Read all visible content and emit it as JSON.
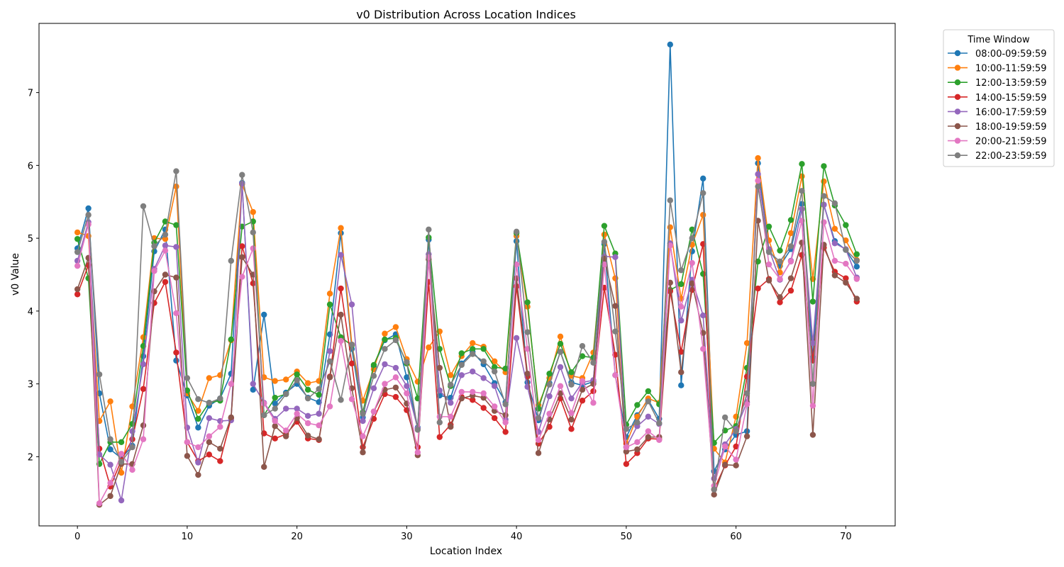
{
  "chart_data": {
    "type": "line",
    "title": "v0 Distribution Across Location Indices",
    "xlabel": "Location Index",
    "ylabel": "v0 Value",
    "xlim": [
      -3.5,
      74.5
    ],
    "ylim": [
      1.05,
      7.95
    ],
    "xticks": [
      0,
      10,
      20,
      30,
      40,
      50,
      60,
      70
    ],
    "yticks": [
      2,
      3,
      4,
      5,
      6,
      7
    ],
    "grid": false,
    "legend": {
      "title": "Time Window",
      "placement": "outside-top-right"
    },
    "x": [
      0,
      1,
      2,
      3,
      4,
      5,
      6,
      7,
      8,
      9,
      10,
      11,
      12,
      13,
      14,
      15,
      16,
      17,
      18,
      19,
      20,
      21,
      22,
      23,
      24,
      25,
      26,
      27,
      28,
      29,
      30,
      31,
      32,
      33,
      34,
      35,
      36,
      37,
      38,
      39,
      40,
      41,
      42,
      43,
      44,
      45,
      46,
      47,
      48,
      49,
      50,
      51,
      52,
      53,
      54,
      55,
      56,
      57,
      58,
      59,
      60,
      61,
      62,
      63,
      64,
      65,
      66,
      67,
      68,
      69,
      70,
      71
    ],
    "series": [
      {
        "name": "08:00-09:59:59",
        "color": "#1f77b4",
        "values": [
          4.86,
          5.41,
          2.87,
          2.1,
          1.98,
          2.15,
          3.38,
          4.82,
          5.12,
          3.32,
          2.84,
          2.4,
          2.7,
          2.8,
          3.14,
          5.76,
          2.92,
          3.95,
          2.73,
          2.88,
          3.0,
          2.81,
          2.75,
          3.68,
          5.07,
          3.48,
          2.54,
          3.24,
          3.6,
          3.68,
          3.09,
          2.4,
          4.98,
          2.84,
          2.81,
          3.28,
          3.44,
          3.27,
          3.01,
          2.75,
          4.96,
          3.02,
          2.5,
          3.01,
          3.44,
          3.02,
          2.98,
          3.03,
          4.92,
          3.12,
          2.27,
          2.57,
          2.78,
          2.52,
          7.66,
          2.98,
          4.82,
          5.82,
          1.8,
          2.1,
          2.3,
          2.35,
          6.03,
          4.84,
          4.62,
          4.85,
          5.47,
          3.36,
          5.46,
          4.96,
          4.84,
          4.61
        ]
      },
      {
        "name": "10:00-11:59:59",
        "color": "#ff7f0e",
        "values": [
          5.08,
          5.03,
          2.49,
          2.76,
          1.78,
          2.69,
          3.64,
          5.0,
          4.99,
          5.71,
          2.87,
          2.63,
          3.08,
          3.12,
          3.6,
          5.74,
          5.36,
          3.09,
          3.04,
          3.06,
          3.17,
          3.01,
          3.04,
          4.24,
          5.14,
          3.54,
          2.77,
          3.2,
          3.69,
          3.78,
          3.34,
          3.03,
          3.5,
          3.72,
          3.12,
          3.38,
          3.56,
          3.51,
          3.31,
          3.16,
          5.03,
          4.06,
          2.71,
          3.08,
          3.65,
          3.11,
          3.08,
          3.43,
          5.05,
          4.45,
          2.18,
          2.55,
          2.8,
          2.74,
          5.15,
          4.17,
          4.91,
          5.32,
          2.11,
          1.92,
          2.55,
          3.56,
          6.1,
          4.97,
          4.53,
          5.07,
          5.85,
          4.44,
          5.78,
          5.13,
          4.97,
          4.7
        ]
      },
      {
        "name": "12:00-13:59:59",
        "color": "#2ca02c",
        "values": [
          4.99,
          4.45,
          1.9,
          2.2,
          2.2,
          2.45,
          3.52,
          4.94,
          5.23,
          5.18,
          2.91,
          2.52,
          2.74,
          2.77,
          3.61,
          5.16,
          5.23,
          2.57,
          2.81,
          2.86,
          3.13,
          2.92,
          2.85,
          4.09,
          3.64,
          3.53,
          2.61,
          3.26,
          3.61,
          3.63,
          3.28,
          2.8,
          5.01,
          3.48,
          2.97,
          3.42,
          3.48,
          3.48,
          3.23,
          3.21,
          5.07,
          4.12,
          2.66,
          3.14,
          3.55,
          3.16,
          3.38,
          3.36,
          5.17,
          4.79,
          2.44,
          2.71,
          2.9,
          2.72,
          4.29,
          4.37,
          5.12,
          4.51,
          2.19,
          2.36,
          2.42,
          3.22,
          4.68,
          5.16,
          4.83,
          5.25,
          6.02,
          4.13,
          5.99,
          5.45,
          5.18,
          4.78
        ]
      },
      {
        "name": "14:00-15:59:59",
        "color": "#d62728",
        "values": [
          4.23,
          4.63,
          2.11,
          1.59,
          1.95,
          2.24,
          2.93,
          4.11,
          4.4,
          3.43,
          2.2,
          1.94,
          2.03,
          1.94,
          2.53,
          4.89,
          4.38,
          2.32,
          2.25,
          2.31,
          2.48,
          2.25,
          2.23,
          3.1,
          4.31,
          3.28,
          2.13,
          2.52,
          2.86,
          2.82,
          2.64,
          2.13,
          4.4,
          2.27,
          2.44,
          2.82,
          2.78,
          2.67,
          2.53,
          2.34,
          4.34,
          3.1,
          2.18,
          2.41,
          2.8,
          2.38,
          2.77,
          2.9,
          4.32,
          3.4,
          1.9,
          2.05,
          2.25,
          2.24,
          4.27,
          3.44,
          4.29,
          4.92,
          1.55,
          1.88,
          2.14,
          3.1,
          4.31,
          4.44,
          4.12,
          4.28,
          4.77,
          3.32,
          4.87,
          4.54,
          4.45,
          4.13
        ]
      },
      {
        "name": "16:00-17:59:59",
        "color": "#9467bd",
        "values": [
          4.69,
          5.22,
          2.03,
          1.89,
          1.4,
          2.35,
          3.27,
          4.58,
          4.9,
          4.88,
          2.4,
          1.92,
          2.53,
          2.49,
          2.5,
          5.75,
          3.0,
          2.74,
          2.52,
          2.66,
          2.66,
          2.56,
          2.59,
          3.45,
          4.77,
          4.09,
          2.49,
          2.94,
          3.27,
          3.22,
          2.97,
          2.39,
          4.78,
          2.91,
          2.74,
          3.12,
          3.17,
          3.08,
          2.97,
          2.51,
          3.63,
          2.96,
          2.34,
          2.83,
          3.23,
          2.8,
          3.02,
          3.05,
          4.75,
          4.74,
          2.13,
          2.42,
          2.55,
          2.45,
          4.93,
          3.87,
          4.43,
          3.94,
          1.7,
          2.17,
          2.38,
          2.75,
          5.88,
          4.85,
          4.43,
          4.69,
          5.4,
          3.56,
          5.46,
          4.93,
          4.85,
          4.46
        ]
      },
      {
        "name": "18:00-19:59:59",
        "color": "#8c564b",
        "values": [
          4.3,
          4.73,
          1.34,
          1.46,
          1.9,
          1.9,
          2.43,
          4.27,
          4.5,
          4.46,
          2.01,
          1.75,
          2.2,
          2.11,
          2.54,
          4.74,
          4.5,
          1.86,
          2.42,
          2.28,
          2.53,
          2.29,
          2.24,
          3.09,
          3.95,
          2.94,
          2.06,
          2.62,
          2.92,
          2.95,
          2.73,
          2.02,
          4.71,
          3.22,
          2.41,
          2.8,
          2.84,
          2.81,
          2.63,
          2.57,
          4.45,
          3.14,
          2.05,
          2.51,
          2.87,
          2.51,
          2.92,
          3.0,
          4.72,
          4.07,
          2.07,
          2.1,
          2.27,
          2.27,
          4.39,
          3.16,
          4.38,
          3.7,
          1.48,
          1.89,
          1.88,
          2.28,
          5.24,
          4.42,
          4.19,
          4.45,
          4.94,
          2.3,
          4.91,
          4.49,
          4.39,
          4.17
        ]
      },
      {
        "name": "20:00-21:59:59",
        "color": "#e377c2",
        "values": [
          4.62,
          5.19,
          1.36,
          1.64,
          2.04,
          1.82,
          2.24,
          4.55,
          4.83,
          3.97,
          2.2,
          2.13,
          2.28,
          2.41,
          3.0,
          4.47,
          4.86,
          2.73,
          2.49,
          2.36,
          2.59,
          2.46,
          2.43,
          2.69,
          3.59,
          2.79,
          2.28,
          2.62,
          3.0,
          3.09,
          2.87,
          2.06,
          4.74,
          2.55,
          2.55,
          2.89,
          2.89,
          2.87,
          2.69,
          2.47,
          4.64,
          3.48,
          2.23,
          2.59,
          2.97,
          2.6,
          3.04,
          2.74,
          4.64,
          3.12,
          2.13,
          2.2,
          2.35,
          2.23,
          4.9,
          4.06,
          4.66,
          3.48,
          1.6,
          2.14,
          1.96,
          2.72,
          5.79,
          4.64,
          4.44,
          4.68,
          5.24,
          2.7,
          5.22,
          4.69,
          4.65,
          4.44
        ]
      },
      {
        "name": "22:00-23:59:59",
        "color": "#7f7f7f",
        "values": [
          4.81,
          5.32,
          3.13,
          2.24,
          1.93,
          2.13,
          5.44,
          4.89,
          5.05,
          5.92,
          3.08,
          2.79,
          2.74,
          2.8,
          4.69,
          5.87,
          5.08,
          2.57,
          2.66,
          2.86,
          3.05,
          2.8,
          2.93,
          3.31,
          2.78,
          3.54,
          2.59,
          3.11,
          3.48,
          3.6,
          3.3,
          2.37,
          5.12,
          2.47,
          2.99,
          3.26,
          3.41,
          3.31,
          3.17,
          2.72,
          5.09,
          3.71,
          2.53,
          2.99,
          3.44,
          2.99,
          3.52,
          3.29,
          4.95,
          3.72,
          2.38,
          2.47,
          2.76,
          2.46,
          5.52,
          4.56,
          5.0,
          5.62,
          1.55,
          2.54,
          2.35,
          2.87,
          5.71,
          4.81,
          4.68,
          4.89,
          5.65,
          3.0,
          5.58,
          5.48,
          4.84,
          4.69
        ]
      }
    ]
  }
}
